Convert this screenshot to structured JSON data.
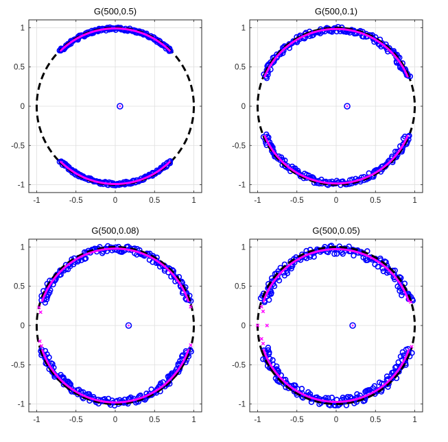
{
  "colors": {
    "computed_eigenvalues": "#0000ff",
    "theoretical_curve": "#ff00ff",
    "unit_circle": "#000000",
    "grid": "#dedede",
    "axes": "#262626"
  },
  "chart_data": [
    {
      "type": "scatter",
      "title": "G(500,0.5)",
      "xlim": [
        -1.1,
        1.1
      ],
      "ylim": [
        -1.1,
        1.1
      ],
      "xticks": [
        -1,
        -0.5,
        0,
        0.5,
        1
      ],
      "yticks": [
        -1,
        -0.5,
        0,
        0.5,
        1
      ],
      "xtick_labels": [
        "-1",
        "-0.5",
        "0",
        "0.5",
        "1"
      ],
      "ytick_labels": [
        "-1",
        "-0.5",
        "0",
        "0.5",
        "1"
      ],
      "grid": true,
      "unit_circle": true,
      "arc_half_angle_deg": 45,
      "ring_spread": 0.02,
      "isolated_eigenvalue": [
        0.06,
        0
      ],
      "outlier_points": []
    },
    {
      "type": "scatter",
      "title": "G(500,0.1)",
      "xlim": [
        -1.1,
        1.1
      ],
      "ylim": [
        -1.1,
        1.1
      ],
      "xticks": [
        -1,
        -0.5,
        0,
        0.5,
        1
      ],
      "yticks": [
        -1,
        -0.5,
        0,
        0.5,
        1
      ],
      "xtick_labels": [
        "-1",
        "-0.5",
        "0",
        "0.5",
        "1"
      ],
      "ytick_labels": [
        "-1",
        "-0.5",
        "0",
        "0.5",
        "1"
      ],
      "grid": true,
      "unit_circle": true,
      "arc_half_angle_deg": 68,
      "ring_spread": 0.035,
      "isolated_eigenvalue": [
        0.14,
        0
      ],
      "outlier_points": []
    },
    {
      "type": "scatter",
      "title": "G(500,0.08)",
      "xlim": [
        -1.1,
        1.1
      ],
      "ylim": [
        -1.1,
        1.1
      ],
      "xticks": [
        -1,
        -0.5,
        0,
        0.5,
        1
      ],
      "yticks": [
        -1,
        -0.5,
        0,
        0.5,
        1
      ],
      "xtick_labels": [
        "-1",
        "-0.5",
        "0",
        "0.5",
        "1"
      ],
      "ytick_labels": [
        "-1",
        "-0.5",
        "0",
        "0.5",
        "1"
      ],
      "grid": true,
      "unit_circle": true,
      "arc_half_angle_deg": 72,
      "ring_spread": 0.045,
      "isolated_eigenvalue": [
        0.17,
        0
      ],
      "outlier_points": [
        [
          -0.97,
          0.23
        ],
        [
          -0.95,
          0.17
        ],
        [
          -0.96,
          -0.2
        ],
        [
          -0.94,
          -0.26
        ],
        [
          0.96,
          0.24
        ],
        [
          0.96,
          -0.25
        ]
      ]
    },
    {
      "type": "scatter",
      "title": "G(500,0.05)",
      "xlim": [
        -1.1,
        1.1
      ],
      "ylim": [
        -1.1,
        1.1
      ],
      "xticks": [
        -1,
        -0.5,
        0,
        0.5,
        1
      ],
      "yticks": [
        -1,
        -0.5,
        0,
        0.5,
        1
      ],
      "xtick_labels": [
        "-1",
        "-0.5",
        "0",
        "0.5",
        "1"
      ],
      "ytick_labels": [
        "-1",
        "-0.5",
        "0",
        "0.5",
        "1"
      ],
      "grid": true,
      "unit_circle": true,
      "arc_half_angle_deg": 72,
      "ring_spread": 0.06,
      "isolated_eigenvalue": [
        0.21,
        0
      ],
      "outlier_points": [
        [
          -1.0,
          0.0
        ],
        [
          -0.88,
          0.0
        ],
        [
          -0.95,
          0.24
        ],
        [
          -0.93,
          0.18
        ],
        [
          -0.95,
          -0.17
        ],
        [
          -0.93,
          -0.23
        ],
        [
          0.95,
          0.3
        ],
        [
          0.96,
          -0.27
        ]
      ]
    }
  ]
}
